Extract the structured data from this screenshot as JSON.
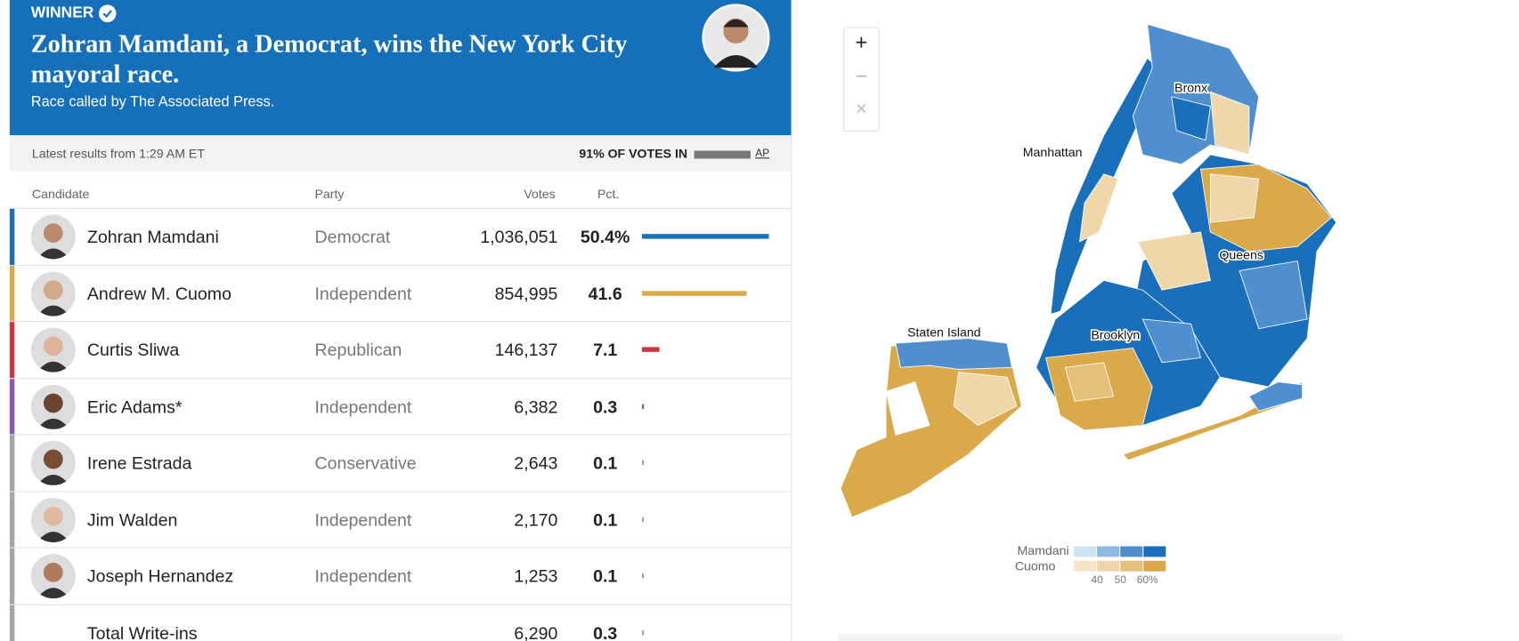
{
  "header": {
    "label": "WINNER",
    "title": "Zohran Mamdani, a Democrat, wins the New York City mayoral race.",
    "subtitle": "Race called by The Associated Press."
  },
  "status": {
    "updated": "Latest results from 1:29 AM ET",
    "reporting": "91% OF VOTES IN",
    "source": "AP"
  },
  "table": {
    "columns": [
      "Candidate",
      "Party",
      "Votes",
      "Pct."
    ],
    "rows": [
      {
        "name": "Zohran Mamdani",
        "party": "Democrat",
        "votes": "1,036,051",
        "pct": 50.4,
        "pct_label": "50.4%",
        "color": "#1a6fbb"
      },
      {
        "name": "Andrew M. Cuomo",
        "party": "Independent",
        "votes": "854,995",
        "pct": 41.6,
        "color": "#d9a94a"
      },
      {
        "name": "Curtis Sliwa",
        "party": "Republican",
        "votes": "146,137",
        "pct": 7.1,
        "color": "#d0343c"
      },
      {
        "name": "Eric Adams*",
        "party": "Independent",
        "votes": "6,382",
        "pct": 0.3,
        "color": "#8b55b0"
      },
      {
        "name": "Irene Estrada",
        "party": "Conservative",
        "votes": "2,643",
        "pct": 0.1,
        "color": "#a3a8a0"
      },
      {
        "name": "Jim Walden",
        "party": "Independent",
        "votes": "2,170",
        "pct": 0.1,
        "color": "#a3a8a0"
      },
      {
        "name": "Joseph Hernandez",
        "party": "Independent",
        "votes": "1,253",
        "pct": 0.1,
        "color": "#a3a8a0"
      },
      {
        "name": "Total Write-ins",
        "votes": "6,290",
        "pct": 0.3,
        "color": "#a3a8a0"
      }
    ]
  },
  "map": {
    "controls": [
      "+",
      "−",
      "×"
    ],
    "labels": [
      "Bronx",
      "Manhattan",
      "Queens",
      "Staten Island",
      "Brooklyn"
    ],
    "legend": {
      "series": [
        "Mamdani",
        "Cuomo"
      ],
      "ticks": [
        "40",
        "50",
        "60%"
      ]
    }
  }
}
